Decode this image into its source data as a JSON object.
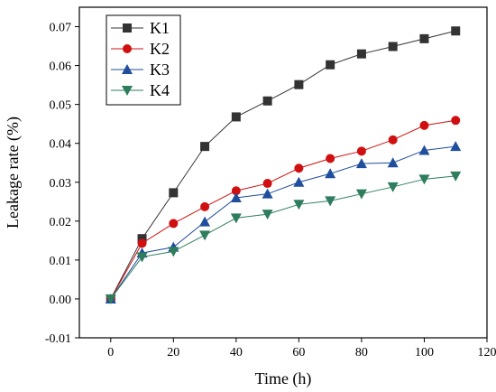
{
  "chart_data": {
    "type": "line",
    "title": "",
    "xlabel": "Time (h)",
    "ylabel": "Leakage rate (%)",
    "xlim": [
      -10,
      120
    ],
    "ylim": [
      -0.01,
      0.075
    ],
    "x_ticks": [
      0,
      20,
      40,
      60,
      80,
      100,
      120
    ],
    "y_ticks": [
      -0.01,
      0.0,
      0.01,
      0.02,
      0.03,
      0.04,
      0.05,
      0.06,
      0.07
    ],
    "x_tick_labels": [
      "0",
      "20",
      "40",
      "60",
      "80",
      "100",
      "120"
    ],
    "y_tick_labels": [
      "-0.01",
      "0.00",
      "0.01",
      "0.02",
      "0.03",
      "0.04",
      "0.05",
      "0.06",
      "0.07"
    ],
    "grid": false,
    "legend_position": "top-left",
    "x": [
      0,
      10,
      20,
      30,
      40,
      50,
      60,
      70,
      80,
      90,
      100,
      110
    ],
    "series": [
      {
        "name": "K1",
        "marker": "square",
        "color": "#333333",
        "values": [
          0.0,
          0.0155,
          0.0273,
          0.0392,
          0.0468,
          0.0509,
          0.0551,
          0.0602,
          0.063,
          0.0649,
          0.0669,
          0.0689
        ]
      },
      {
        "name": "K2",
        "marker": "circle",
        "color": "#d01010",
        "values": [
          0.0,
          0.0143,
          0.0194,
          0.0237,
          0.0278,
          0.0297,
          0.0336,
          0.0361,
          0.038,
          0.0409,
          0.0446,
          0.0459
        ]
      },
      {
        "name": "K3",
        "marker": "triangle-up",
        "color": "#1f4e9c",
        "values": [
          0.0,
          0.0118,
          0.0133,
          0.0198,
          0.026,
          0.027,
          0.03,
          0.0322,
          0.0348,
          0.035,
          0.0382,
          0.0392
        ]
      },
      {
        "name": "K4",
        "marker": "triangle-down",
        "color": "#2e7d5e",
        "values": [
          0.0,
          0.0108,
          0.0122,
          0.0164,
          0.0208,
          0.0218,
          0.0243,
          0.0252,
          0.027,
          0.0288,
          0.0308,
          0.0316
        ]
      }
    ]
  }
}
